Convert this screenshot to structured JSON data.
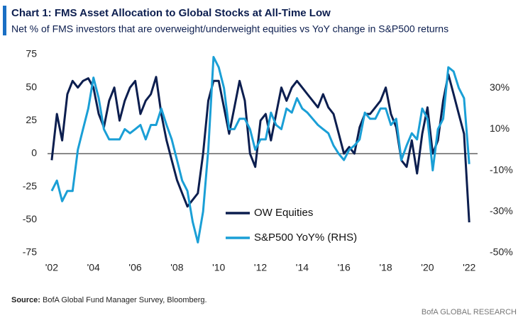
{
  "chart_data": {
    "type": "line",
    "title": "Chart 1: FMS Asset Allocation to Global Stocks at All-Time Low",
    "subtitle": "Net % of FMS investors that are overweight/underweight equities vs YoY change in S&P500 returns",
    "source_label": "Source:",
    "source_text": "BofA Global Fund Manager Survey, Bloomberg.",
    "credit": "BofA GLOBAL RESEARCH",
    "x": [
      2002,
      2002.25,
      2002.5,
      2002.75,
      2003,
      2003.25,
      2003.5,
      2003.75,
      2004,
      2004.25,
      2004.5,
      2004.75,
      2005,
      2005.25,
      2005.5,
      2005.75,
      2006,
      2006.25,
      2006.5,
      2006.75,
      2007,
      2007.25,
      2007.5,
      2007.75,
      2008,
      2008.25,
      2008.5,
      2008.75,
      2009,
      2009.25,
      2009.5,
      2009.75,
      2010,
      2010.25,
      2010.5,
      2010.75,
      2011,
      2011.25,
      2011.5,
      2011.75,
      2012,
      2012.25,
      2012.5,
      2012.75,
      2013,
      2013.25,
      2013.5,
      2013.75,
      2014,
      2014.25,
      2014.5,
      2014.75,
      2015,
      2015.25,
      2015.5,
      2015.75,
      2016,
      2016.25,
      2016.5,
      2016.75,
      2017,
      2017.25,
      2017.5,
      2017.75,
      2018,
      2018.25,
      2018.5,
      2018.75,
      2019,
      2019.25,
      2019.5,
      2019.75,
      2020,
      2020.25,
      2020.5,
      2020.75,
      2021,
      2021.25,
      2021.5,
      2021.75,
      2022
    ],
    "series": [
      {
        "name": "OW Equities",
        "color": "#0c1e4f",
        "axis": "y",
        "values": [
          -5,
          30,
          10,
          45,
          55,
          50,
          55,
          57,
          50,
          30,
          20,
          40,
          50,
          25,
          40,
          50,
          55,
          30,
          40,
          45,
          58,
          30,
          10,
          -5,
          -20,
          -30,
          -40,
          -35,
          -30,
          0,
          40,
          55,
          55,
          35,
          15,
          35,
          55,
          40,
          0,
          -10,
          25,
          30,
          10,
          30,
          50,
          40,
          50,
          55,
          50,
          45,
          40,
          35,
          45,
          35,
          30,
          15,
          0,
          5,
          0,
          20,
          30,
          30,
          35,
          40,
          50,
          30,
          20,
          -5,
          -10,
          10,
          -15,
          15,
          35,
          0,
          10,
          40,
          60,
          45,
          30,
          15,
          -52
        ]
      },
      {
        "name": "S&P500 YoY% (RHS)",
        "color": "#1a9fd6",
        "axis": "y2",
        "values": [
          -20,
          -15,
          -25,
          -20,
          -20,
          0,
          10,
          20,
          35,
          25,
          10,
          5,
          5,
          5,
          10,
          8,
          10,
          12,
          5,
          12,
          12,
          20,
          12,
          5,
          -5,
          -15,
          -20,
          -35,
          -45,
          -30,
          0,
          45,
          40,
          30,
          10,
          10,
          15,
          15,
          10,
          0,
          5,
          5,
          18,
          12,
          10,
          20,
          18,
          25,
          20,
          18,
          15,
          12,
          10,
          8,
          2,
          -2,
          -5,
          0,
          2,
          5,
          18,
          15,
          15,
          20,
          20,
          12,
          15,
          -5,
          2,
          8,
          5,
          20,
          15,
          -10,
          10,
          15,
          40,
          38,
          30,
          25,
          -7
        ]
      }
    ],
    "xlim": [
      2001.8,
      2022.4
    ],
    "xticks": [
      {
        "value": 2002,
        "label": "'02"
      },
      {
        "value": 2004,
        "label": "'04"
      },
      {
        "value": 2006,
        "label": "'06"
      },
      {
        "value": 2008,
        "label": "'08"
      },
      {
        "value": 2010,
        "label": "'10"
      },
      {
        "value": 2012,
        "label": "'12"
      },
      {
        "value": 2014,
        "label": "'14"
      },
      {
        "value": 2016,
        "label": "'16"
      },
      {
        "value": 2018,
        "label": "'18"
      },
      {
        "value": 2020,
        "label": "'20"
      },
      {
        "value": 2022,
        "label": "'22"
      }
    ],
    "ylim": [
      -75,
      75
    ],
    "yticks": [
      -75,
      -50,
      -25,
      0,
      25,
      50,
      75
    ],
    "y2lim": [
      -50,
      46.2
    ],
    "y2ticks": [
      {
        "value": -50,
        "label": "-50%"
      },
      {
        "value": -30,
        "label": "-30%"
      },
      {
        "value": -10,
        "label": "-10%"
      },
      {
        "value": 10,
        "label": "10%"
      },
      {
        "value": 30,
        "label": "30%"
      }
    ],
    "zero_line": true
  }
}
